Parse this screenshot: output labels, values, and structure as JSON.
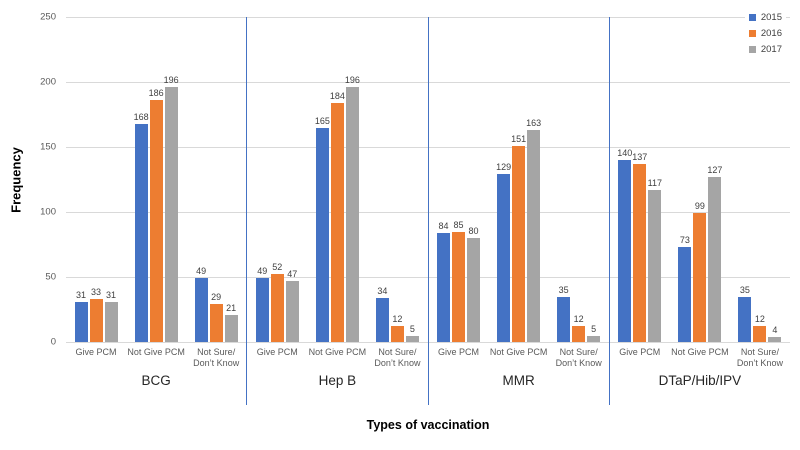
{
  "chart_data": {
    "type": "bar",
    "title": "",
    "xlabel": "Types of vaccination",
    "ylabel": "Frequency",
    "ylim": [
      0,
      250
    ],
    "yticks": [
      0,
      50,
      100,
      150,
      200,
      250
    ],
    "grid": true,
    "legend_position": "top-right",
    "categories": [
      "Give PCM",
      "Not Give PCM",
      "Not Sure/\nDon’t Know"
    ],
    "series": [
      {
        "name": "2015",
        "color": "#4472C4"
      },
      {
        "name": "2016",
        "color": "#ED7D31"
      },
      {
        "name": "2017",
        "color": "#A5A5A5"
      }
    ],
    "groups": [
      {
        "label": "BCG",
        "values": [
          [
            31,
            33,
            31
          ],
          [
            168,
            186,
            196
          ],
          [
            49,
            29,
            21
          ]
        ]
      },
      {
        "label": "Hep B",
        "values": [
          [
            49,
            52,
            47
          ],
          [
            165,
            184,
            196
          ],
          [
            34,
            12,
            5
          ]
        ]
      },
      {
        "label": "MMR",
        "values": [
          [
            84,
            85,
            80
          ],
          [
            129,
            151,
            163
          ],
          [
            35,
            12,
            5
          ]
        ]
      },
      {
        "label": "DTaP/Hib/IPV",
        "values": [
          [
            140,
            137,
            117
          ],
          [
            73,
            99,
            127
          ],
          [
            35,
            12,
            4
          ]
        ]
      }
    ]
  },
  "colors": {
    "gridline": "#D9D9D9",
    "divider": "#4472C4",
    "tick_label": "#595959",
    "category_label": "#595959",
    "group_label": "#262626",
    "value_label": "#404040",
    "background": "#FFFFFF"
  }
}
